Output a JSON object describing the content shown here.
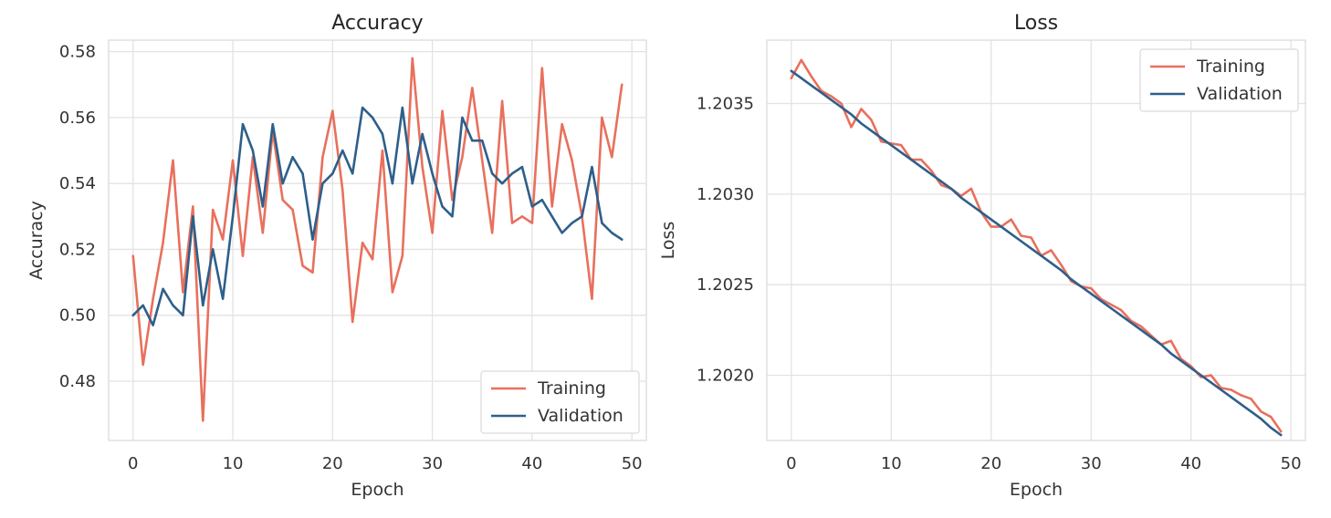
{
  "colors": {
    "training": "#e8705d",
    "validation": "#2e5f8a"
  },
  "chart_data": [
    {
      "type": "line",
      "title": "Accuracy",
      "xlabel": "Epoch",
      "ylabel": "Accuracy",
      "xlim": [
        -2.45,
        51.45
      ],
      "ylim": [
        0.462,
        0.5835
      ],
      "xticks": [
        0,
        10,
        20,
        30,
        40,
        50
      ],
      "yticks": [
        0.48,
        0.5,
        0.52,
        0.54,
        0.56,
        0.58
      ],
      "xtick_labels": [
        "0",
        "10",
        "20",
        "30",
        "40",
        "50"
      ],
      "ytick_labels": [
        "0.48",
        "0.50",
        "0.52",
        "0.54",
        "0.56",
        "0.58"
      ],
      "grid": true,
      "legend": "lower-right",
      "x": [
        0,
        1,
        2,
        3,
        4,
        5,
        6,
        7,
        8,
        9,
        10,
        11,
        12,
        13,
        14,
        15,
        16,
        17,
        18,
        19,
        20,
        21,
        22,
        23,
        24,
        25,
        26,
        27,
        28,
        29,
        30,
        31,
        32,
        33,
        34,
        35,
        36,
        37,
        38,
        39,
        40,
        41,
        42,
        43,
        44,
        45,
        46,
        47,
        48,
        49
      ],
      "series": [
        {
          "name": "Training",
          "color_key": "training",
          "values": [
            0.518,
            0.485,
            0.505,
            0.522,
            0.547,
            0.507,
            0.533,
            0.468,
            0.532,
            0.523,
            0.547,
            0.518,
            0.548,
            0.525,
            0.556,
            0.535,
            0.532,
            0.515,
            0.513,
            0.548,
            0.562,
            0.538,
            0.498,
            0.522,
            0.517,
            0.55,
            0.507,
            0.518,
            0.578,
            0.545,
            0.525,
            0.562,
            0.535,
            0.548,
            0.569,
            0.547,
            0.525,
            0.565,
            0.528,
            0.53,
            0.528,
            0.575,
            0.533,
            0.558,
            0.547,
            0.53,
            0.505,
            0.56,
            0.548,
            0.57
          ]
        },
        {
          "name": "Validation",
          "color_key": "validation",
          "values": [
            0.5,
            0.503,
            0.497,
            0.508,
            0.503,
            0.5,
            0.53,
            0.503,
            0.52,
            0.505,
            0.53,
            0.558,
            0.55,
            0.533,
            0.558,
            0.54,
            0.548,
            0.543,
            0.523,
            0.54,
            0.543,
            0.55,
            0.543,
            0.563,
            0.56,
            0.555,
            0.54,
            0.563,
            0.54,
            0.555,
            0.543,
            0.533,
            0.53,
            0.56,
            0.553,
            0.553,
            0.543,
            0.54,
            0.543,
            0.545,
            0.533,
            0.535,
            0.53,
            0.525,
            0.528,
            0.53,
            0.545,
            0.528,
            0.525,
            0.523
          ]
        }
      ]
    },
    {
      "type": "line",
      "title": "Loss",
      "xlabel": "Epoch",
      "ylabel": "Loss",
      "xlim": [
        -2.45,
        51.45
      ],
      "ylim": [
        1.20164,
        1.20385
      ],
      "xticks": [
        0,
        10,
        20,
        30,
        40,
        50
      ],
      "yticks": [
        1.202,
        1.2025,
        1.203,
        1.2035
      ],
      "xtick_labels": [
        "0",
        "10",
        "20",
        "30",
        "40",
        "50"
      ],
      "ytick_labels": [
        "1.2020",
        "1.2025",
        "1.2030",
        "1.2035"
      ],
      "grid": true,
      "legend": "upper-right",
      "x": [
        0,
        1,
        2,
        3,
        4,
        5,
        6,
        7,
        8,
        9,
        10,
        11,
        12,
        13,
        14,
        15,
        16,
        17,
        18,
        19,
        20,
        21,
        22,
        23,
        24,
        25,
        26,
        27,
        28,
        29,
        30,
        31,
        32,
        33,
        34,
        35,
        36,
        37,
        38,
        39,
        40,
        41,
        42,
        43,
        44,
        45,
        46,
        47,
        48,
        49
      ],
      "series": [
        {
          "name": "Training",
          "color_key": "training",
          "values": [
            1.20364,
            1.20374,
            1.20365,
            1.20357,
            1.20354,
            1.2035,
            1.20337,
            1.20347,
            1.20341,
            1.20329,
            1.20328,
            1.20327,
            1.20319,
            1.20319,
            1.20313,
            1.20305,
            1.20303,
            1.20299,
            1.20303,
            1.2029,
            1.20282,
            1.20282,
            1.20286,
            1.20277,
            1.20276,
            1.20266,
            1.20269,
            1.20261,
            1.20252,
            1.20249,
            1.20248,
            1.20242,
            1.20239,
            1.20236,
            1.2023,
            1.20227,
            1.20222,
            1.20217,
            1.20219,
            1.20209,
            1.20205,
            1.20199,
            1.202,
            1.20193,
            1.20192,
            1.20189,
            1.20187,
            1.2018,
            1.20177,
            1.20169
          ]
        },
        {
          "name": "Validation",
          "color_key": "validation",
          "values": [
            1.20368,
            1.20364,
            1.2036,
            1.20356,
            1.20352,
            1.20348,
            1.20344,
            1.20339,
            1.20335,
            1.20331,
            1.20327,
            1.20323,
            1.20319,
            1.20315,
            1.20311,
            1.20307,
            1.20303,
            1.20298,
            1.20294,
            1.2029,
            1.20286,
            1.20282,
            1.20278,
            1.20274,
            1.2027,
            1.20266,
            1.20262,
            1.20258,
            1.20253,
            1.20249,
            1.20245,
            1.20241,
            1.20237,
            1.20233,
            1.20229,
            1.20225,
            1.20221,
            1.20217,
            1.20212,
            1.20208,
            1.20204,
            1.202,
            1.20196,
            1.20192,
            1.20188,
            1.20184,
            1.2018,
            1.20176,
            1.20171,
            1.20167
          ]
        }
      ]
    }
  ]
}
